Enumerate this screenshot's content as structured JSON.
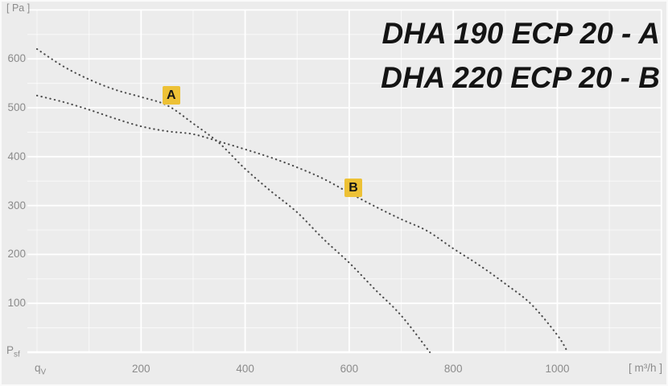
{
  "page": {
    "background": "#ececec",
    "grid_color": "#ffffff",
    "text_color": "#8b8b8b",
    "curve_color": "#4d4d4d",
    "badge_bg": "#edc136",
    "badge_text_color": "#161616",
    "title_color": "#141414"
  },
  "title": {
    "line1": "DHA 190 ECP 20 - A",
    "line2": "DHA 220 ECP 20 - B"
  },
  "axes": {
    "y_unit": "[ Pa ]",
    "y_bottom_label": {
      "base": "P",
      "sub": "sf"
    },
    "x_origin_label": {
      "base": "q",
      "sub": "V"
    },
    "x_unit": "[ m³/h ]"
  },
  "chart_data": {
    "type": "line",
    "style": "dotted",
    "title": "DHA 190 ECP 20 - A / DHA 220 ECP 20 - B",
    "xlabel": "qV [m³/h]",
    "ylabel": "Psf [Pa]",
    "grid": true,
    "x_range": [
      0,
      1200
    ],
    "y_range": [
      0,
      720
    ],
    "x_major_ticks": [
      200,
      400,
      600,
      800,
      1000
    ],
    "y_major_ticks": [
      100,
      200,
      300,
      400,
      500,
      600
    ],
    "minor_grid_step_x": 100,
    "minor_grid_step_y": 50,
    "series": [
      {
        "name": "DHA 190 ECP 20 - A",
        "marker": "A",
        "marker_at": {
          "x": 258,
          "y": 525
        },
        "points": [
          [
            0,
            620
          ],
          [
            50,
            585
          ],
          [
            100,
            558
          ],
          [
            150,
            537
          ],
          [
            200,
            522
          ],
          [
            250,
            505
          ],
          [
            300,
            468
          ],
          [
            350,
            428
          ],
          [
            400,
            375
          ],
          [
            450,
            329
          ],
          [
            500,
            286
          ],
          [
            550,
            232
          ],
          [
            600,
            183
          ],
          [
            650,
            128
          ],
          [
            700,
            75
          ],
          [
            755,
            0
          ]
        ]
      },
      {
        "name": "DHA 220 ECP 20 - B",
        "marker": "B",
        "marker_at": {
          "x": 608,
          "y": 336
        },
        "points": [
          [
            0,
            525
          ],
          [
            50,
            512
          ],
          [
            100,
            496
          ],
          [
            150,
            478
          ],
          [
            200,
            462
          ],
          [
            250,
            452
          ],
          [
            300,
            446
          ],
          [
            350,
            431
          ],
          [
            400,
            415
          ],
          [
            450,
            398
          ],
          [
            500,
            378
          ],
          [
            550,
            355
          ],
          [
            600,
            326
          ],
          [
            650,
            298
          ],
          [
            700,
            272
          ],
          [
            750,
            248
          ],
          [
            800,
            212
          ],
          [
            850,
            178
          ],
          [
            900,
            140
          ],
          [
            950,
            98
          ],
          [
            1000,
            35
          ],
          [
            1020,
            0
          ]
        ]
      }
    ]
  }
}
